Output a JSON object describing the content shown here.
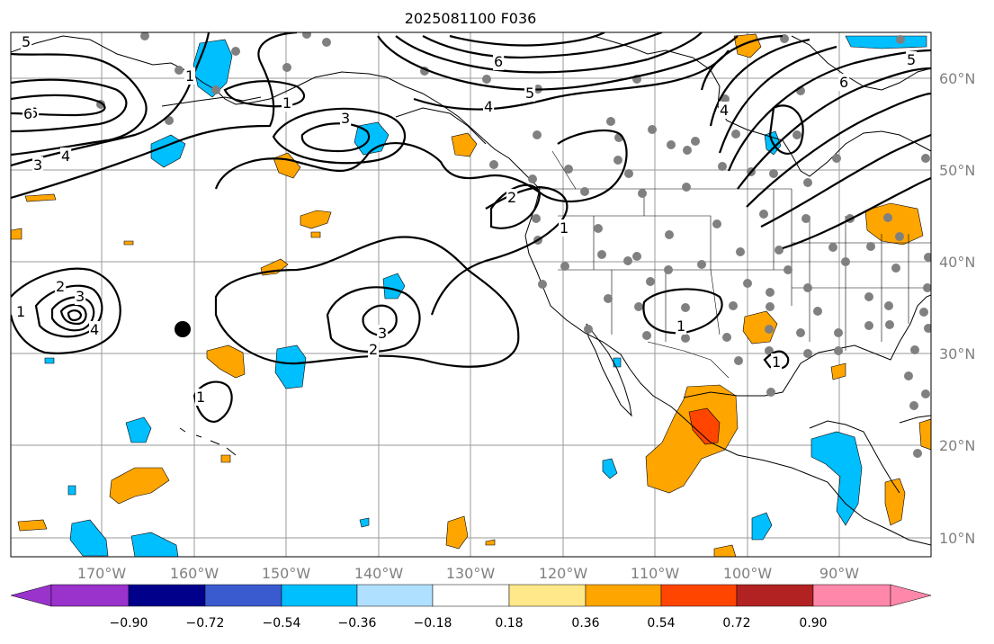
{
  "title": "2025081100 F036",
  "colors": {
    "neg_purple": "#9933cc",
    "neg_0_90": "#00008b",
    "neg_0_72": "#3a5bd0",
    "neg_0_54": "#00bfff",
    "neg_0_36": "#b0e0ff",
    "zero": "#ffffff",
    "pos_0_18": "#ffe88a",
    "pos_0_36": "#ffa500",
    "pos_0_54": "#ff4500",
    "pos_0_72": "#b22222",
    "pos_0_90": "#ff88aa",
    "station_dot": "#808080"
  },
  "map": {
    "lon_labels": [
      "170°W",
      "160°W",
      "150°W",
      "140°W",
      "130°W",
      "120°W",
      "110°W",
      "100°W",
      "90°W"
    ],
    "lat_labels": [
      "60°N",
      "50°N",
      "40°N",
      "30°N",
      "20°N",
      "10°N"
    ]
  },
  "contour_labels": [
    "5",
    "6",
    "3",
    "4",
    "1",
    "3",
    "1",
    "4",
    "5",
    "6",
    "2",
    "1",
    "6",
    "4",
    "5",
    "3",
    "1",
    "2",
    "3",
    "2",
    "6",
    "4",
    "1",
    "1",
    "1"
  ],
  "colorbar": {
    "ticks": [
      "−0.90",
      "−0.72",
      "−0.54",
      "−0.36",
      "−0.18",
      "0.18",
      "0.36",
      "0.54",
      "0.72",
      "0.90"
    ]
  }
}
